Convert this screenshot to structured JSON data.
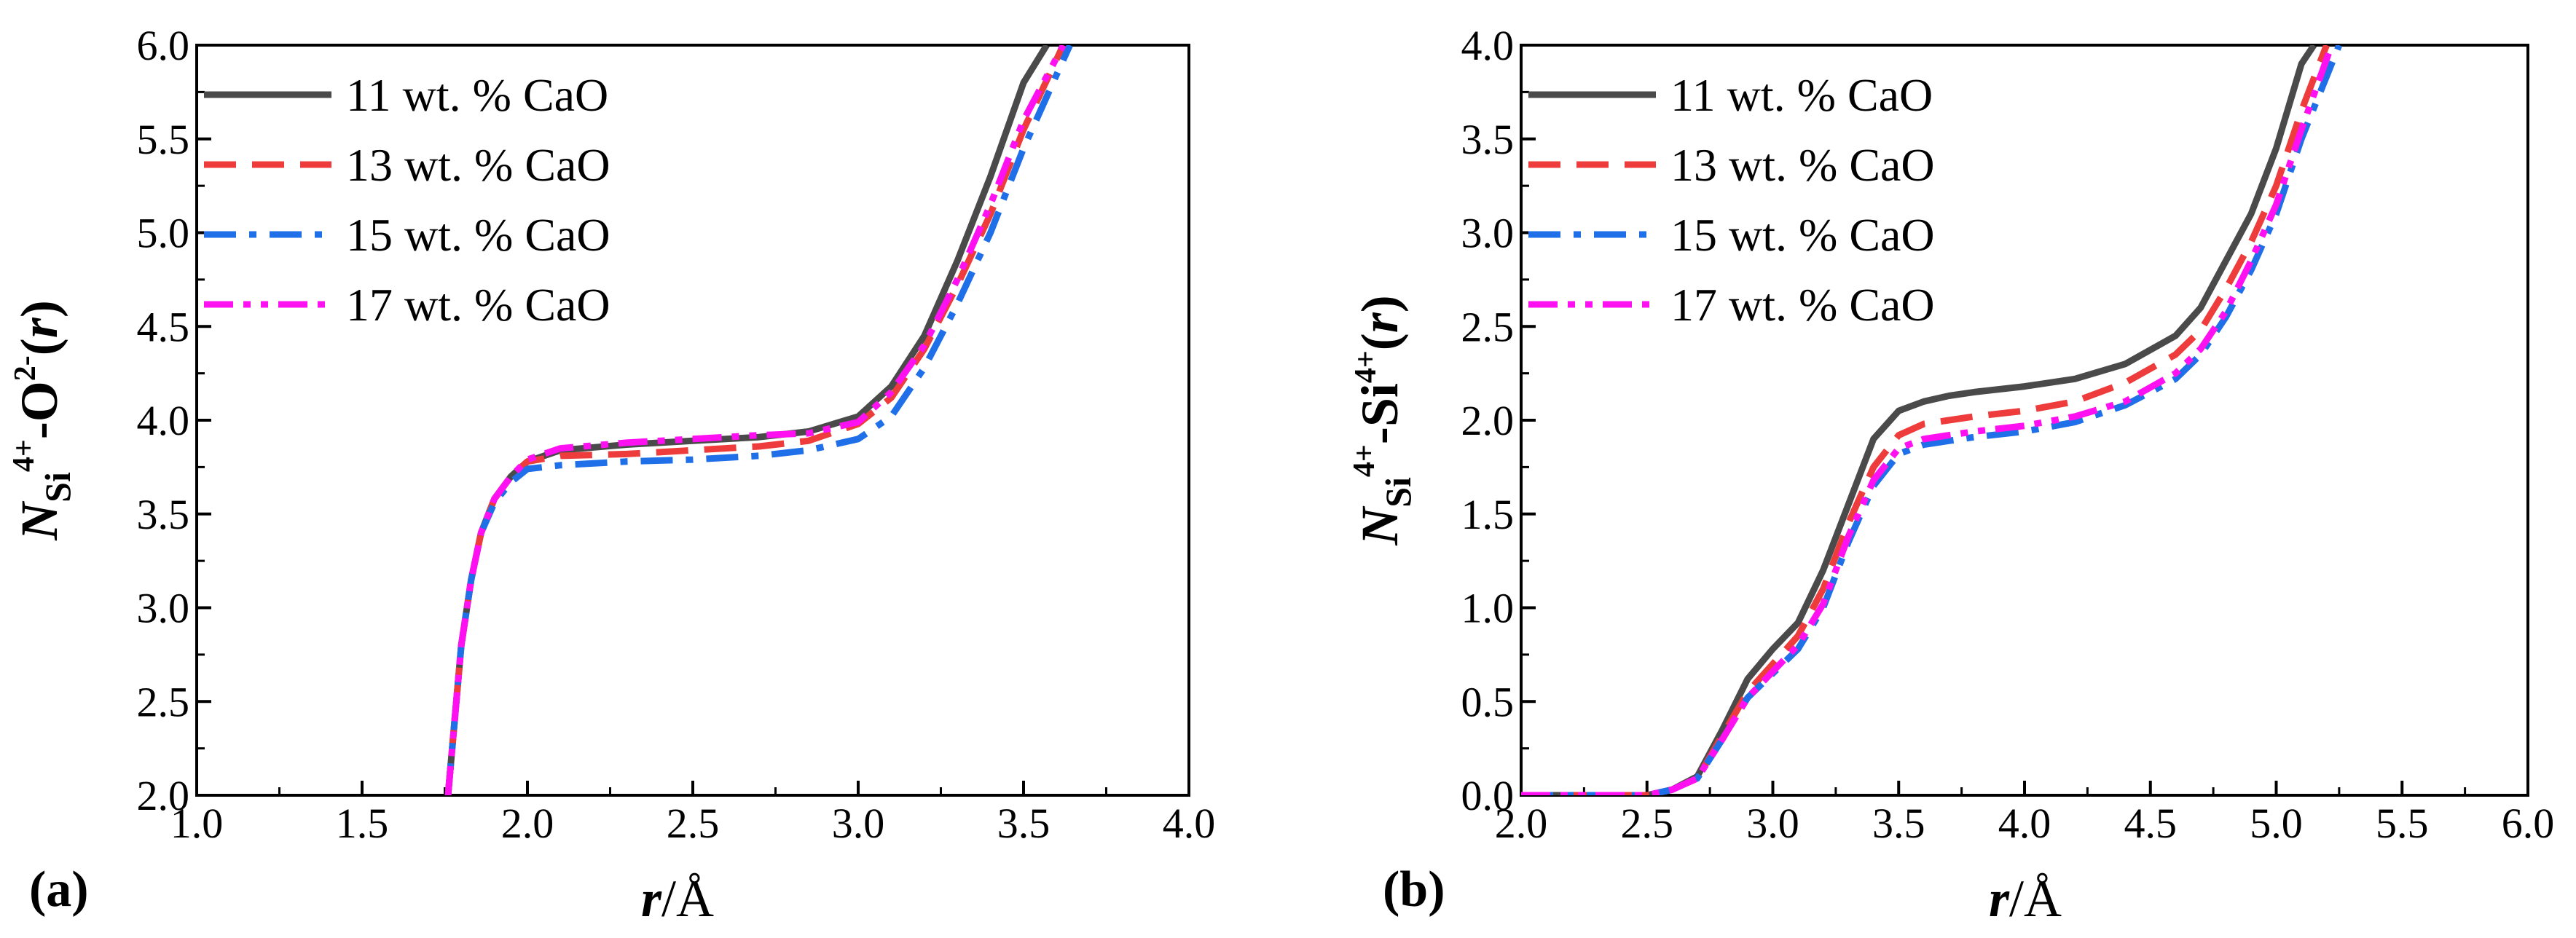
{
  "colors": {
    "11": "#4a4a4a",
    "13": "#ee3b3b",
    "15": "#1f6fe8",
    "17": "#ff10f0"
  },
  "chart_data": [
    {
      "type": "line",
      "panel": "(a)",
      "xlabel": "r/Å",
      "xlabel_parts": {
        "var": "r",
        "unit": "/Å"
      },
      "ylabel_parts": {
        "N": "N",
        "sub1": "Si",
        "sup1": "4+",
        "mid": "-O",
        "sup2": "2-",
        "tail": "(",
        "r": "r",
        "close": ")"
      },
      "xlim": [
        1.0,
        4.0
      ],
      "ylim": [
        2.0,
        6.0
      ],
      "xticks": [
        "1.0",
        "1.5",
        "2.0",
        "2.5",
        "3.0",
        "3.5",
        "4.0"
      ],
      "yticks": [
        "2.0",
        "2.5",
        "3.0",
        "3.5",
        "4.0",
        "4.5",
        "5.0",
        "5.5",
        "6.0"
      ],
      "legend_position": "top-left",
      "series": [
        {
          "name": "11 wt. % CaO",
          "key": "11",
          "style": "solid",
          "x": [
            1.76,
            1.78,
            1.8,
            1.83,
            1.86,
            1.9,
            1.95,
            2.0,
            2.1,
            2.3,
            2.5,
            2.7,
            2.85,
            3.0,
            3.1,
            3.2,
            3.3,
            3.4,
            3.5,
            3.57
          ],
          "y": [
            2.0,
            2.4,
            2.8,
            3.15,
            3.4,
            3.58,
            3.7,
            3.78,
            3.84,
            3.87,
            3.89,
            3.91,
            3.94,
            4.02,
            4.18,
            4.45,
            4.85,
            5.3,
            5.8,
            6.0
          ]
        },
        {
          "name": "13 wt. % CaO",
          "key": "13",
          "style": "dash",
          "x": [
            1.76,
            1.78,
            1.8,
            1.83,
            1.86,
            1.9,
            1.95,
            2.0,
            2.1,
            2.3,
            2.5,
            2.7,
            2.85,
            3.0,
            3.1,
            3.2,
            3.3,
            3.4,
            3.5,
            3.62
          ],
          "y": [
            2.0,
            2.4,
            2.8,
            3.15,
            3.4,
            3.58,
            3.7,
            3.78,
            3.81,
            3.82,
            3.84,
            3.86,
            3.89,
            3.98,
            4.12,
            4.38,
            4.72,
            5.1,
            5.55,
            6.0
          ]
        },
        {
          "name": "15 wt. % CaO",
          "key": "15",
          "style": "dashdot",
          "x": [
            1.76,
            1.78,
            1.8,
            1.83,
            1.86,
            1.9,
            1.95,
            2.0,
            2.1,
            2.3,
            2.5,
            2.7,
            2.85,
            3.0,
            3.1,
            3.2,
            3.3,
            3.4,
            3.5,
            3.64
          ],
          "y": [
            2.0,
            2.4,
            2.8,
            3.15,
            3.4,
            3.56,
            3.67,
            3.74,
            3.76,
            3.78,
            3.79,
            3.81,
            3.84,
            3.9,
            4.02,
            4.28,
            4.62,
            5.0,
            5.45,
            6.0
          ]
        },
        {
          "name": "17 wt. % CaO",
          "key": "17",
          "style": "dashdotdot",
          "x": [
            1.76,
            1.78,
            1.8,
            1.83,
            1.86,
            1.9,
            1.95,
            2.0,
            2.1,
            2.3,
            2.5,
            2.7,
            2.85,
            3.0,
            3.1,
            3.2,
            3.3,
            3.4,
            3.5,
            3.62
          ],
          "y": [
            2.0,
            2.4,
            2.8,
            3.15,
            3.4,
            3.58,
            3.7,
            3.79,
            3.85,
            3.88,
            3.9,
            3.92,
            3.93,
            3.99,
            4.15,
            4.4,
            4.75,
            5.15,
            5.6,
            6.0
          ]
        }
      ]
    },
    {
      "type": "line",
      "panel": "(b)",
      "xlabel": "r/Å",
      "xlabel_parts": {
        "var": "r",
        "unit": "/Å"
      },
      "ylabel_parts": {
        "N": "N",
        "sub1": "Si",
        "sup1": "4+",
        "mid": "-Si",
        "sup2": "4+",
        "tail": "(",
        "r": "r",
        "close": ")"
      },
      "xlim": [
        2.0,
        6.0
      ],
      "ylim": [
        0.0,
        4.0
      ],
      "xticks": [
        "2.0",
        "2.5",
        "3.0",
        "3.5",
        "4.0",
        "4.5",
        "5.0",
        "5.5",
        "6.0"
      ],
      "yticks": [
        "0.0",
        "0.5",
        "1.0",
        "1.5",
        "2.0",
        "2.5",
        "3.0",
        "3.5",
        "4.0"
      ],
      "legend_position": "top-left",
      "series": [
        {
          "name": "11 wt. % CaO",
          "key": "11",
          "style": "solid",
          "x": [
            2.0,
            2.5,
            2.6,
            2.7,
            2.8,
            2.9,
            3.0,
            3.1,
            3.2,
            3.3,
            3.4,
            3.5,
            3.6,
            3.7,
            3.8,
            4.0,
            4.2,
            4.4,
            4.6,
            4.7,
            4.8,
            4.9,
            5.0,
            5.1,
            5.15
          ],
          "y": [
            0.0,
            0.0,
            0.03,
            0.1,
            0.35,
            0.62,
            0.78,
            0.92,
            1.2,
            1.55,
            1.9,
            2.05,
            2.1,
            2.13,
            2.15,
            2.18,
            2.22,
            2.3,
            2.45,
            2.6,
            2.85,
            3.1,
            3.45,
            3.9,
            4.0
          ]
        },
        {
          "name": "13 wt. % CaO",
          "key": "13",
          "style": "dash",
          "x": [
            2.0,
            2.5,
            2.6,
            2.7,
            2.8,
            2.9,
            3.0,
            3.1,
            3.2,
            3.3,
            3.4,
            3.5,
            3.6,
            3.7,
            3.8,
            4.0,
            4.2,
            4.4,
            4.6,
            4.7,
            4.8,
            4.9,
            5.0,
            5.1,
            5.2
          ],
          "y": [
            0.0,
            0.0,
            0.03,
            0.09,
            0.32,
            0.55,
            0.7,
            0.85,
            1.1,
            1.45,
            1.75,
            1.92,
            1.98,
            2.0,
            2.02,
            2.05,
            2.1,
            2.2,
            2.35,
            2.48,
            2.7,
            2.95,
            3.25,
            3.65,
            4.0
          ]
        },
        {
          "name": "15 wt. % CaO",
          "key": "15",
          "style": "dashdot",
          "x": [
            2.0,
            2.5,
            2.6,
            2.7,
            2.8,
            2.9,
            3.0,
            3.1,
            3.2,
            3.3,
            3.4,
            3.5,
            3.6,
            3.7,
            3.8,
            4.0,
            4.2,
            4.4,
            4.6,
            4.7,
            4.8,
            4.9,
            5.0,
            5.1,
            5.25
          ],
          "y": [
            0.0,
            0.0,
            0.03,
            0.09,
            0.3,
            0.52,
            0.65,
            0.78,
            1.0,
            1.35,
            1.65,
            1.82,
            1.87,
            1.89,
            1.91,
            1.94,
            1.99,
            2.08,
            2.22,
            2.35,
            2.55,
            2.8,
            3.1,
            3.5,
            4.0
          ]
        },
        {
          "name": "17 wt. % CaO",
          "key": "17",
          "style": "dashdotdot",
          "x": [
            2.0,
            2.5,
            2.6,
            2.7,
            2.8,
            2.9,
            3.0,
            3.1,
            3.2,
            3.3,
            3.4,
            3.5,
            3.6,
            3.7,
            3.8,
            4.0,
            4.2,
            4.4,
            4.6,
            4.7,
            4.8,
            4.9,
            5.0,
            5.1,
            5.22
          ],
          "y": [
            0.0,
            0.0,
            0.03,
            0.09,
            0.3,
            0.52,
            0.66,
            0.8,
            1.02,
            1.38,
            1.68,
            1.85,
            1.9,
            1.92,
            1.94,
            1.97,
            2.02,
            2.1,
            2.25,
            2.38,
            2.58,
            2.85,
            3.15,
            3.55,
            4.0
          ]
        }
      ]
    }
  ]
}
